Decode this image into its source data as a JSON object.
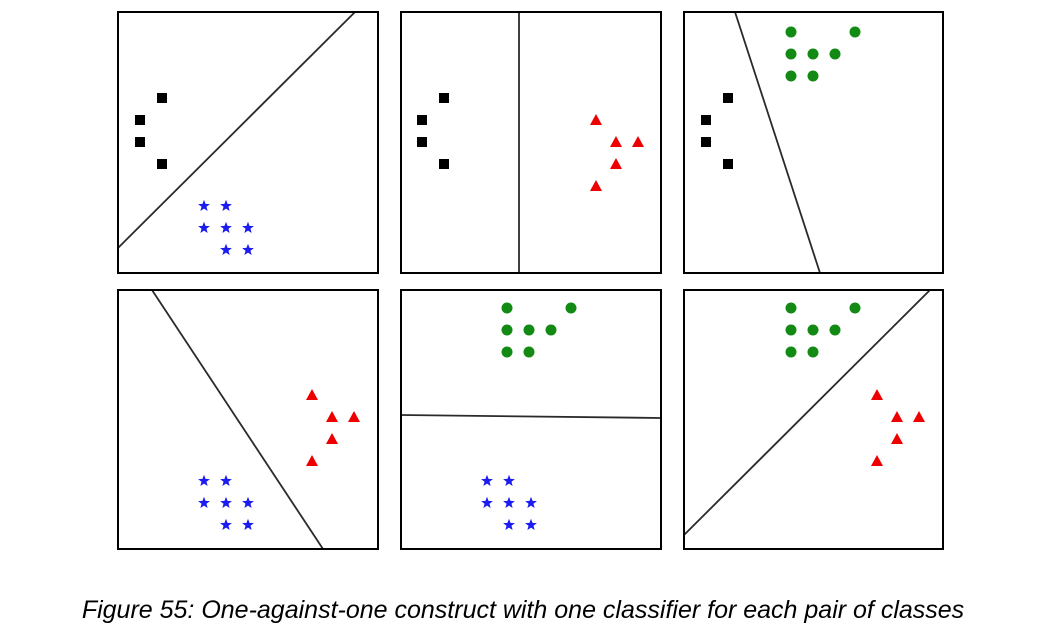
{
  "caption": "Figure 55: One-against-one construct with one classifier for each pair of classes",
  "colors": {
    "class_square": "#000000",
    "class_star": "#1c1cf0",
    "class_triangle": "#ee0000",
    "class_circle": "#138a13",
    "panel_border": "#000000",
    "separator": "#2a2a2a"
  },
  "panels": [
    {
      "id": "black-vs-blue",
      "classes": [
        "square",
        "star"
      ],
      "separator": "diagonal"
    },
    {
      "id": "black-vs-red",
      "classes": [
        "square",
        "triangle"
      ],
      "separator": "vertical"
    },
    {
      "id": "black-vs-green",
      "classes": [
        "square",
        "circle"
      ],
      "separator": "diagonal"
    },
    {
      "id": "blue-vs-red",
      "classes": [
        "star",
        "triangle"
      ],
      "separator": "diagonal"
    },
    {
      "id": "green-vs-blue",
      "classes": [
        "circle",
        "star"
      ],
      "separator": "horizontal"
    },
    {
      "id": "green-vs-red",
      "classes": [
        "circle",
        "triangle"
      ],
      "separator": "diagonal"
    }
  ]
}
